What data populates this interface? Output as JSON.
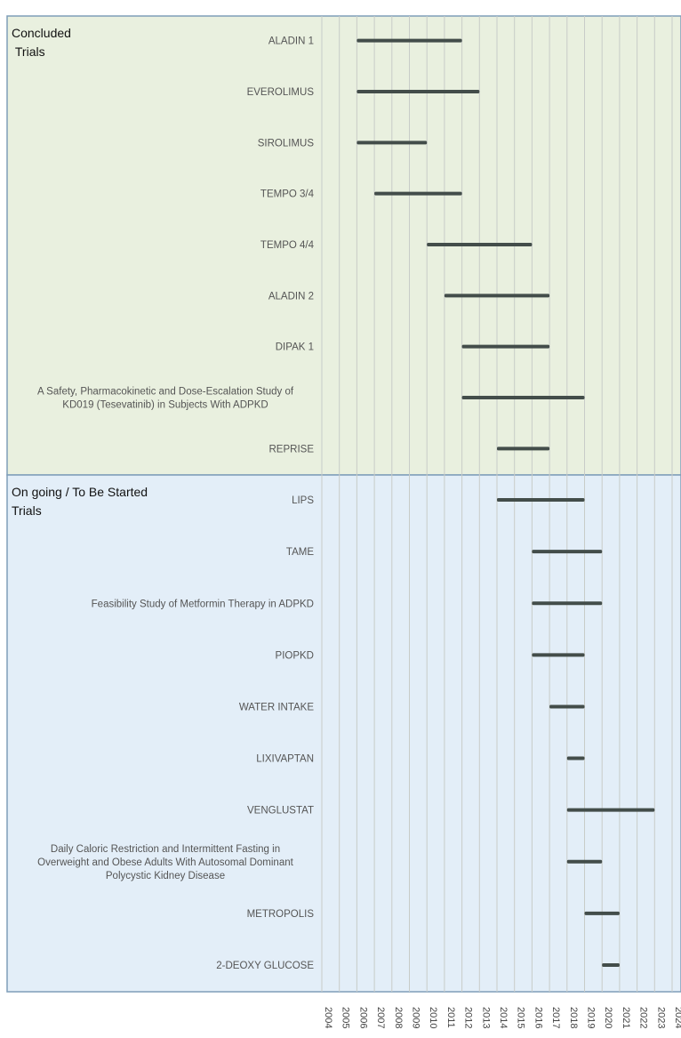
{
  "chart_data": {
    "type": "gantt",
    "title": "",
    "xlabel": "",
    "ylabel": "",
    "xlim": [
      2004,
      2024
    ],
    "x_ticks": [
      "2004",
      "2005",
      "2006",
      "2007",
      "2008",
      "2009",
      "2010",
      "2011",
      "2012",
      "2013",
      "2014",
      "2015",
      "2016",
      "2017",
      "2018",
      "2019",
      "2020",
      "2021",
      "2022",
      "2023",
      "2024"
    ],
    "grid": "vertical",
    "bar_color": "#434d4a",
    "groups": [
      {
        "label": "Concluded\n Trials",
        "background": "#e9f0df",
        "trials": [
          {
            "name": "ALADIN 1",
            "start": 2006,
            "end": 2012
          },
          {
            "name": "EVEROLIMUS",
            "start": 2006,
            "end": 2013
          },
          {
            "name": "SIROLIMUS",
            "start": 2006,
            "end": 2010
          },
          {
            "name": "TEMPO 3/4",
            "start": 2007,
            "end": 2012
          },
          {
            "name": "TEMPO 4/4",
            "start": 2010,
            "end": 2016
          },
          {
            "name": "ALADIN 2",
            "start": 2011,
            "end": 2017
          },
          {
            "name": "DIPAK 1",
            "start": 2012,
            "end": 2017
          },
          {
            "name": "A Safety, Pharmacokinetic and Dose-Escalation Study of\nKD019 (Tesevatinib) in Subjects With ADPKD",
            "start": 2012,
            "end": 2019
          },
          {
            "name": "REPRISE",
            "start": 2014,
            "end": 2017
          }
        ]
      },
      {
        "label": "On going / To Be Started\nTrials",
        "background": "#e3eef8",
        "trials": [
          {
            "name": "LIPS",
            "start": 2014,
            "end": 2019
          },
          {
            "name": "TAME",
            "start": 2016,
            "end": 2020
          },
          {
            "name": "Feasibility Study of Metformin Therapy in ADPKD",
            "start": 2016,
            "end": 2020
          },
          {
            "name": "PIOPKD",
            "start": 2016,
            "end": 2019
          },
          {
            "name": "WATER INTAKE",
            "start": 2017,
            "end": 2019
          },
          {
            "name": "LIXIVAPTAN",
            "start": 2018,
            "end": 2019
          },
          {
            "name": "VENGLUSTAT",
            "start": 2018,
            "end": 2023
          },
          {
            "name": "Daily Caloric Restriction and Intermittent Fasting in\nOverweight and Obese Adults With Autosomal Dominant\nPolycystic Kidney Disease",
            "start": 2018,
            "end": 2020
          },
          {
            "name": "METROPOLIS",
            "start": 2019,
            "end": 2021
          },
          {
            "name": "2-DEOXY GLUCOSE",
            "start": 2020,
            "end": 2021
          }
        ]
      }
    ]
  }
}
